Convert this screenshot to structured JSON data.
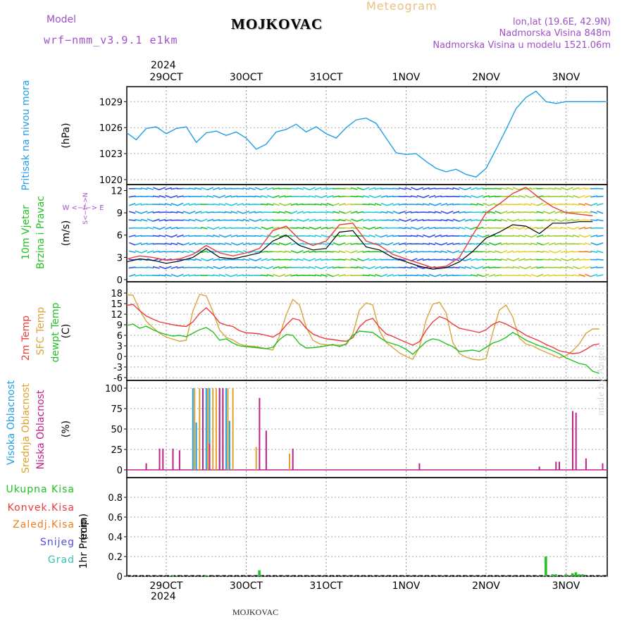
{
  "header": {
    "model_label": "Model",
    "model_name": "wrf−nmm_v3.9.1  e1km",
    "station": "MOJKOVAC",
    "meteogram": "Meteogram",
    "lonlat": "lon,lat (19.6E, 42.9N)",
    "elevation": "Nadmorska Visina 848m",
    "model_elevation": "Nadmorska Visina u modelu 1521.06m",
    "credit": "made by Angel",
    "footer_station": "MOJKOVAC"
  },
  "colors": {
    "pressure": "#1e9fe6",
    "temp2m": "#ee3a3a",
    "sfctemp": "#d8a43c",
    "dewpoint": "#22c022",
    "wind_speed": "#000000",
    "wind_max": "#ee3a3a",
    "high_cloud": "#1e9fe6",
    "mid_cloud": "#e0a22a",
    "low_cloud": "#c0208a",
    "total_precip": "#22c022",
    "conv_precip": "#ee3a3a",
    "freezing": "#ee7d1e",
    "snow": "#5050e0",
    "hail": "#33c4b4",
    "model": "#a050c8",
    "meteogram": "#e8c080"
  },
  "time_axis": {
    "year": "2024",
    "days": [
      "29OCT",
      "30OCT",
      "31OCT",
      "1NOV",
      "2NOV",
      "3NOV"
    ]
  },
  "chart_data": [
    {
      "type": "line",
      "panel": "pressure",
      "ylabel": "Pritisak na nivou mora",
      "unit": "(hPa)",
      "ylim": [
        1020,
        1030
      ],
      "yticks": [
        1020,
        1023,
        1026,
        1029
      ],
      "grid": true,
      "x_hours_from_29OCT_00": [
        -12,
        -9,
        -6,
        -3,
        0,
        3,
        6,
        9,
        12,
        15,
        18,
        21,
        24,
        27,
        30,
        33,
        36,
        39,
        42,
        45,
        48,
        51,
        54,
        57,
        60,
        63,
        66,
        69,
        72,
        75,
        78,
        81,
        84,
        87,
        90,
        93,
        96,
        99,
        102,
        105,
        108,
        111,
        114,
        117,
        120,
        123,
        126,
        129,
        132,
        135,
        138,
        141,
        144,
        147,
        150,
        153,
        156,
        159,
        162
      ],
      "series": [
        {
          "name": "Pritisak na nivou mora",
          "values": [
            1025.4,
            1024.6,
            1025.9,
            1026.1,
            1025.3,
            1025.9,
            1026.1,
            1024.3,
            1025.4,
            1025.6,
            1025.1,
            1025.5,
            1024.8,
            1023.5,
            1024.1,
            1025.5,
            1025.8,
            1026.4,
            1025.5,
            1026.1,
            1025.3,
            1024.8,
            1026.0,
            1026.9,
            1027.1,
            1026.5,
            1024.8,
            1023.1,
            1022.9,
            1023.0,
            1022.1,
            1021.3,
            1020.9,
            1021.2,
            1020.6,
            1020.3,
            1021.3,
            1023.5,
            1025.8,
            1028.2,
            1029.5,
            1030.2,
            1029.0,
            1028.8,
            1029.0,
            1029.0,
            1029.0,
            1029.0,
            1029.0,
            1029.0,
            1029.0,
            1029.0,
            1029.0,
            1029.0,
            1029.0,
            1029.0,
            1029.0,
            1029.0,
            1029.0
          ]
        }
      ]
    },
    {
      "type": "line",
      "panel": "wind",
      "ylabel": [
        "10m Vjetar",
        "Brzina i Pravac"
      ],
      "unit": "(m/s)",
      "direction_legend": "W <−I−> E",
      "direction_legend_ns": "S<−I−>N",
      "ylim": [
        0,
        12.8
      ],
      "yticks": [
        0,
        3,
        6,
        9,
        12
      ],
      "grid": true,
      "x_hours_from_29OCT_00": [
        -12,
        -8,
        -4,
        0,
        4,
        8,
        12,
        16,
        20,
        24,
        28,
        32,
        36,
        40,
        44,
        48,
        52,
        56,
        60,
        64,
        68,
        72,
        76,
        80,
        84,
        88,
        92,
        96,
        100,
        104,
        108,
        112,
        116,
        120,
        124,
        128
      ],
      "series": [
        {
          "name": "speed",
          "values": [
            2.4,
            2.8,
            2.6,
            2.2,
            2.5,
            3.0,
            4.2,
            3.0,
            2.8,
            3.2,
            3.6,
            5.2,
            6.0,
            4.6,
            4.0,
            4.2,
            6.4,
            6.6,
            4.4,
            4.0,
            3.0,
            2.4,
            1.8,
            1.4,
            1.6,
            2.4,
            3.8,
            5.6,
            6.4,
            7.4,
            7.2,
            6.2,
            7.6,
            7.6,
            7.8,
            7.8
          ]
        },
        {
          "name": "max",
          "values": [
            2.8,
            3.2,
            3.0,
            2.6,
            2.8,
            3.4,
            4.6,
            3.6,
            3.2,
            3.6,
            4.2,
            6.6,
            7.2,
            5.4,
            4.6,
            5.2,
            7.4,
            7.6,
            5.2,
            4.6,
            3.4,
            2.8,
            2.2,
            1.6,
            1.8,
            3.0,
            6.0,
            9.0,
            10.2,
            11.6,
            12.4,
            11.0,
            9.8,
            9.0,
            8.8,
            8.6
          ]
        }
      ]
    },
    {
      "type": "line",
      "panel": "temperature",
      "ylabel": [
        "2m Temp",
        "SFC Temp",
        "dewpt Temp"
      ],
      "unit": "(C)",
      "ylim": [
        -6,
        19
      ],
      "yticks": [
        -6,
        -3,
        0,
        3,
        6,
        9,
        12,
        15,
        18
      ],
      "grid": true,
      "x_hours_from_29OCT_00": [
        -12,
        -10,
        -8,
        -6,
        -4,
        -2,
        0,
        2,
        4,
        6,
        8,
        10,
        12,
        14,
        16,
        18,
        20,
        22,
        24,
        26,
        28,
        30,
        32,
        34,
        36,
        38,
        40,
        42,
        44,
        46,
        48,
        50,
        52,
        54,
        56,
        58,
        60,
        62,
        64,
        66,
        68,
        70,
        72,
        74,
        76,
        78,
        80,
        82,
        84,
        86,
        88,
        90,
        92,
        94,
        96,
        98,
        100,
        102,
        104,
        106,
        108,
        110,
        112,
        114,
        116,
        118,
        120,
        122,
        124,
        126,
        128,
        130
      ],
      "series": [
        {
          "name": "2m Temp",
          "values": [
            14.5,
            14.8,
            13.0,
            11.5,
            10.6,
            9.8,
            9.4,
            9.0,
            8.7,
            8.5,
            9.8,
            12.2,
            13.8,
            12.0,
            9.6,
            8.9,
            8.5,
            7.3,
            6.7,
            6.6,
            6.4,
            6.0,
            5.5,
            6.6,
            8.9,
            10.8,
            10.3,
            8.0,
            6.4,
            5.6,
            5.0,
            4.8,
            4.5,
            4.3,
            5.3,
            8.4,
            10.2,
            10.8,
            8.3,
            6.4,
            5.7,
            4.8,
            4.0,
            3.2,
            4.2,
            7.4,
            9.8,
            11.3,
            10.6,
            9.2,
            8.0,
            7.6,
            7.2,
            6.8,
            7.6,
            9.1,
            9.9,
            9.2,
            8.2,
            7.2,
            6.0,
            5.2,
            4.4,
            3.4,
            2.6,
            1.6,
            1.2,
            0.8,
            1.0,
            2.0,
            3.2,
            3.6
          ]
        },
        {
          "name": "SFC Temp",
          "values": [
            17.5,
            17.4,
            13.2,
            10.0,
            8.2,
            6.6,
            5.5,
            4.9,
            4.3,
            4.6,
            12.8,
            17.6,
            17.2,
            12.8,
            7.5,
            5.4,
            4.7,
            3.5,
            3.0,
            2.9,
            2.6,
            2.2,
            1.8,
            5.8,
            11.8,
            16.2,
            14.6,
            8.3,
            4.6,
            3.6,
            3.3,
            3.2,
            3.2,
            3.3,
            6.4,
            13.2,
            15.2,
            14.6,
            7.3,
            4.0,
            2.5,
            1.0,
            0.0,
            -0.8,
            2.6,
            10.4,
            14.8,
            15.4,
            12.4,
            4.0,
            0.8,
            -0.2,
            -0.8,
            -1.0,
            -0.6,
            6.8,
            13.2,
            14.6,
            11.2,
            5.2,
            3.5,
            3.0,
            2.0,
            1.2,
            0.4,
            -0.4,
            0.2,
            1.6,
            3.6,
            6.6,
            7.8,
            7.8
          ]
        },
        {
          "name": "dewpt Temp",
          "values": [
            8.8,
            9.2,
            8.0,
            8.6,
            7.6,
            6.8,
            6.2,
            5.8,
            6.0,
            5.6,
            6.6,
            7.6,
            8.2,
            7.0,
            4.6,
            5.0,
            3.8,
            3.0,
            2.8,
            2.6,
            2.4,
            2.2,
            2.6,
            4.8,
            6.2,
            6.0,
            3.6,
            2.4,
            2.5,
            2.7,
            3.0,
            3.4,
            2.8,
            3.6,
            6.0,
            7.2,
            7.0,
            6.8,
            5.4,
            4.2,
            3.6,
            3.0,
            2.0,
            0.6,
            2.4,
            4.2,
            5.0,
            4.6,
            3.6,
            2.8,
            1.4,
            1.6,
            1.8,
            1.4,
            2.6,
            3.8,
            4.4,
            5.4,
            6.8,
            5.8,
            4.6,
            3.8,
            3.0,
            2.4,
            1.6,
            0.8,
            -0.4,
            -1.2,
            -2.0,
            -2.4,
            -4.2,
            -4.8
          ]
        }
      ]
    },
    {
      "type": "bar",
      "panel": "clouds",
      "ylabel": [
        "Visoka Oblacnost",
        "Srednja Oblacnost",
        "Niska Oblacnost"
      ],
      "unit": "(%)",
      "ylim": [
        0,
        100
      ],
      "yticks": [
        0,
        25,
        50,
        75,
        100
      ],
      "grid": true,
      "series": [
        {
          "name": "Visoka Oblacnost",
          "x_hours_from_29OCT_00": [
            8,
            9,
            12,
            13,
            16,
            18,
            19
          ],
          "values": [
            100,
            58,
            100,
            100,
            100,
            100,
            60
          ]
        },
        {
          "name": "Srednja Oblacnost",
          "x_hours_from_29OCT_00": [
            8.5,
            10,
            11,
            12.5,
            14,
            15,
            17,
            18.5,
            20,
            27,
            37
          ],
          "values": [
            100,
            100,
            96,
            100,
            100,
            100,
            100,
            100,
            100,
            28,
            20
          ]
        },
        {
          "name": "Niska Oblacnost",
          "x_hours_from_29OCT_00": [
            -6,
            -2,
            -1,
            2,
            4,
            11,
            13,
            16,
            17,
            28,
            30,
            38,
            76,
            112,
            117,
            118,
            122,
            123,
            126,
            131,
            152,
            154,
            156,
            158,
            160,
            161,
            163,
            165,
            168,
            170,
            174,
            177,
            184
          ],
          "values": [
            8,
            26,
            26,
            26,
            24,
            100,
            32,
            100,
            100,
            88,
            48,
            26,
            8,
            4,
            10,
            10,
            72,
            70,
            14,
            8,
            10,
            26,
            2,
            8,
            62,
            100,
            100,
            98,
            100,
            100,
            100,
            100,
            26
          ]
        }
      ]
    },
    {
      "type": "bar",
      "panel": "precipitation",
      "ylabel": "1hr Precip",
      "unit": "(mm)",
      "legend": [
        "Ukupna Kisa",
        "Konvek.Kisa",
        "Zaledj.Kisa",
        "Snijeg",
        "Grad"
      ],
      "ylim": [
        0,
        1.0
      ],
      "yticks": [
        0,
        0.2,
        0.4,
        0.6,
        0.8
      ],
      "grid": true,
      "series": [
        {
          "name": "Ukupna Kisa",
          "x_hours_from_29OCT_00": [
            2,
            12,
            28,
            114,
            116,
            117,
            120,
            122,
            123,
            124,
            125,
            160,
            161,
            162,
            163,
            164,
            165,
            166,
            167,
            168,
            169,
            170,
            171,
            172,
            173,
            174,
            175,
            176,
            177,
            178,
            179,
            180
          ],
          "values": [
            0.01,
            0.01,
            0.06,
            0.2,
            0.02,
            0.02,
            0.02,
            0.03,
            0.04,
            0.02,
            0.02,
            0.11,
            0.08,
            0.13,
            0.25,
            0.3,
            0.35,
            0.32,
            0.4,
            0.45,
            0.44,
            0.38,
            0.4,
            0.11,
            0.08,
            0.1,
            0.1,
            0.04,
            0.06,
            0.04,
            0.03,
            0.03
          ]
        },
        {
          "name": "Konvek.Kisa",
          "x_hours_from_29OCT_00": [
            170,
            174
          ],
          "values": [
            0.02,
            0.02
          ]
        }
      ]
    }
  ]
}
